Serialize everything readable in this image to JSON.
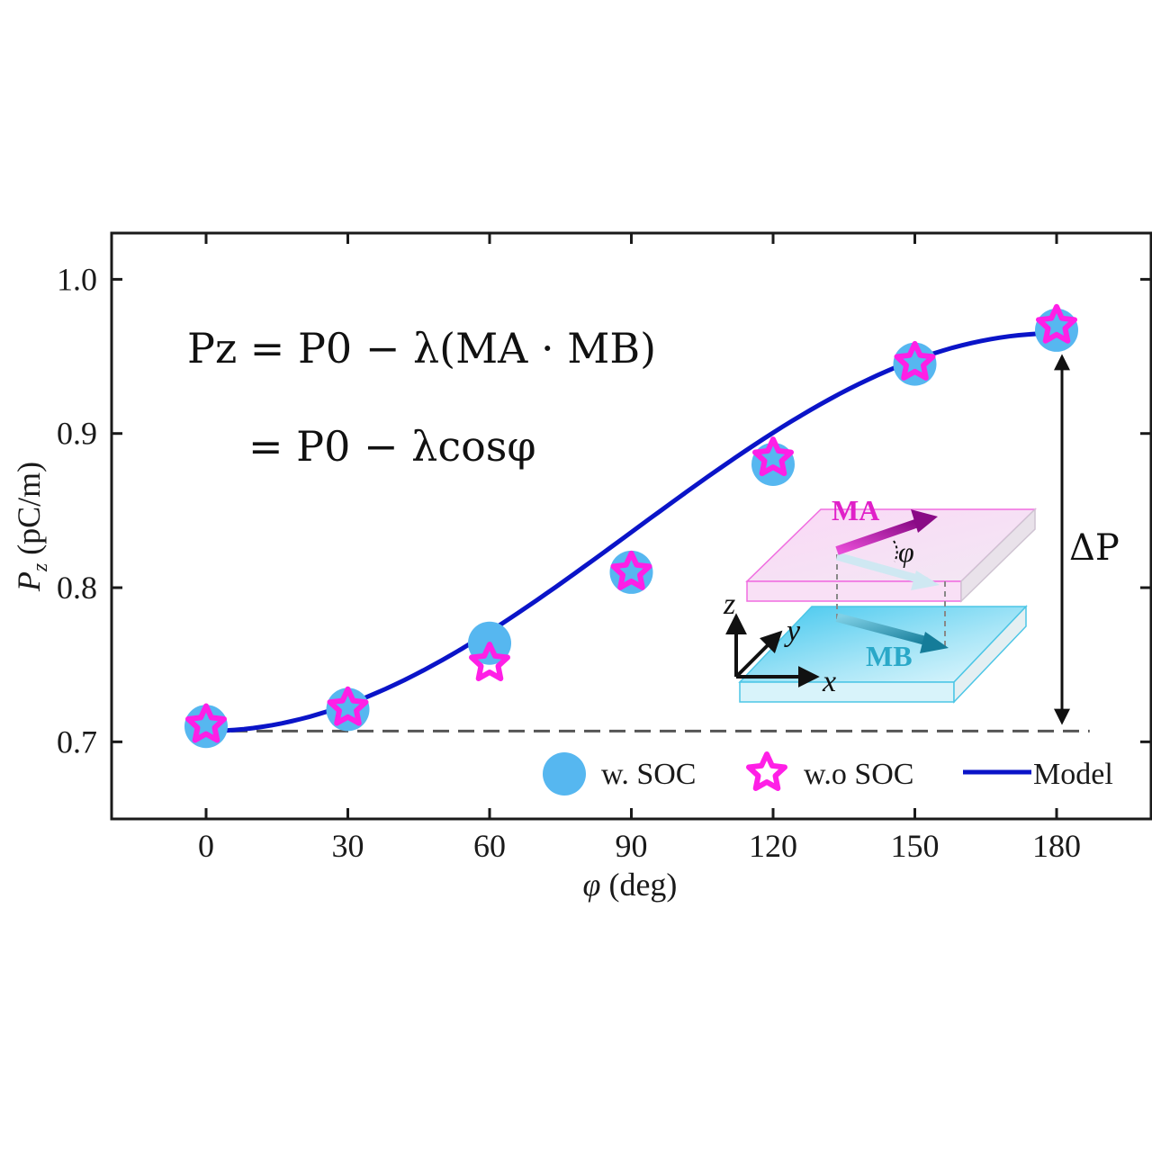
{
  "chart_data": {
    "type": "scatter",
    "title": "",
    "xlabel": "φ (deg)",
    "ylabel": "Pz (pC/m)",
    "ylabel_main": "P",
    "ylabel_sub": "z",
    "ylabel_unit": " (pC/m)",
    "xlabel_var": "φ",
    "xlabel_unit": " (deg)",
    "xlim": [
      -20,
      200
    ],
    "ylim": [
      0.65,
      1.03
    ],
    "xticks": [
      0,
      30,
      60,
      90,
      120,
      150,
      180
    ],
    "xtick_labels": [
      "0",
      "30",
      "60",
      "90",
      "120",
      "150",
      "180"
    ],
    "yticks": [
      0.7,
      0.8,
      0.9,
      1.0
    ],
    "ytick_labels": [
      "0.7",
      "0.8",
      "0.9",
      "1.0"
    ],
    "grid": false,
    "legend_position": "bottom-right",
    "series": [
      {
        "name": "w. SOC",
        "marker": "circle",
        "color": "#56b7f0",
        "x": [
          0,
          30,
          60,
          90,
          120,
          150,
          180
        ],
        "y": [
          0.71,
          0.721,
          0.764,
          0.81,
          0.88,
          0.945,
          0.967
        ]
      },
      {
        "name": "w.o SOC",
        "marker": "star",
        "color": "#ff1fe6",
        "x": [
          0,
          30,
          60,
          90,
          120,
          150,
          180
        ],
        "y": [
          0.711,
          0.722,
          0.751,
          0.81,
          0.884,
          0.946,
          0.97
        ]
      },
      {
        "name": "Model",
        "marker": "line",
        "color": "#0a14c8",
        "formula": "P0 - lambda*cos(phi)",
        "P0": 0.836,
        "lambda": 0.129
      }
    ],
    "reference_line": {
      "y": 0.707,
      "style": "dashed",
      "color": "#555555"
    },
    "annotations": {
      "delta_label": "ΔP",
      "equation_line1": "Pz = P0 − λ(MA · MB)",
      "equation_line2": "= P0 − λcosφ"
    },
    "inset": {
      "labels": [
        "MA",
        "MB",
        "φ",
        "x",
        "y",
        "z"
      ],
      "ma_color": "#e020c8",
      "mb_color": "#2aa8c8"
    }
  }
}
